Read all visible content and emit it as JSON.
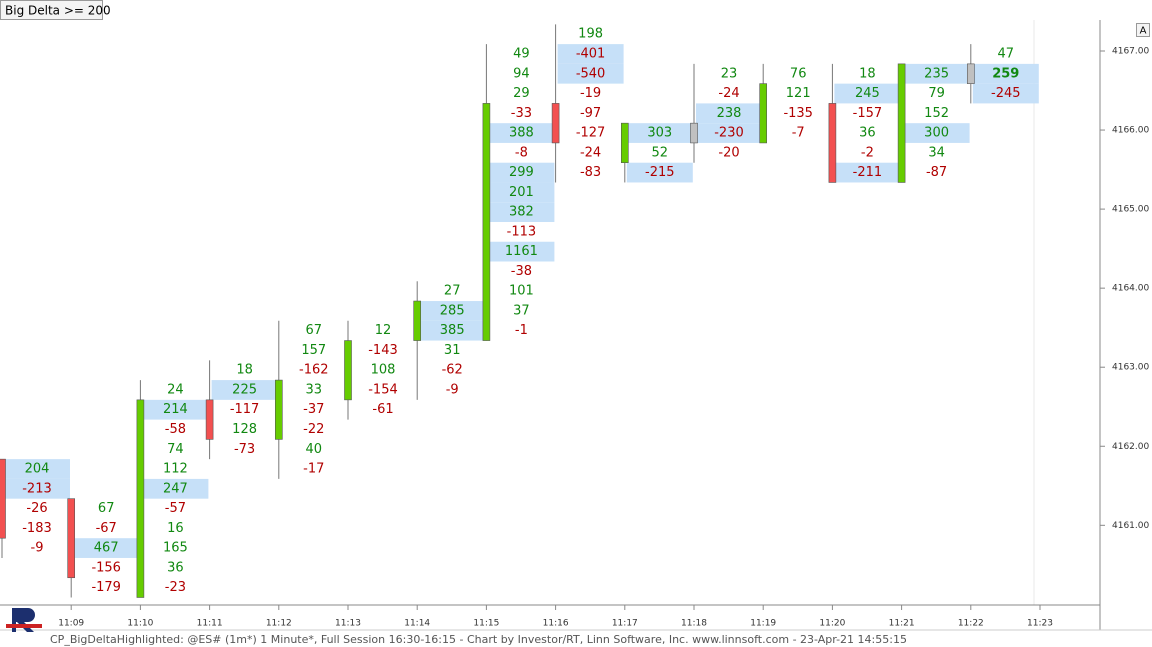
{
  "chart_data": {
    "type": "footprint",
    "title": "Big Delta >= 200",
    "highlight_threshold": 200,
    "tick_size": 0.25,
    "footer": "CP_BigDeltaHighlighted: @ES# (1m*) 1 Minute*, Full Session 16:30-16:15 - Chart by Investor/RT, Linn Software, Inc. www.linnsoft.com - 23-Apr-21 14:55:15",
    "corner_button": "A",
    "ylim": [
      4160.03,
      4167.43
    ],
    "yticks": [
      {
        "value": 4161,
        "label": "4161.00"
      },
      {
        "value": 4162,
        "label": "4162.00"
      },
      {
        "value": 4163,
        "label": "4163.00"
      },
      {
        "value": 4164,
        "label": "4164.00"
      },
      {
        "value": 4165,
        "label": "4165.00"
      },
      {
        "value": 4166,
        "label": "4166.00"
      },
      {
        "value": 4167,
        "label": "4167.00"
      }
    ],
    "x_labels": [
      "11:09",
      "11:10",
      "11:11",
      "11:12",
      "11:13",
      "11:14",
      "11:15",
      "11:16",
      "11:17",
      "11:18",
      "11:19",
      "11:20",
      "11:21",
      "11:22",
      "11:23"
    ],
    "colors": {
      "up": "#66cc00",
      "down": "#f25050",
      "flat": "#c0c0c0",
      "positive": "#118811",
      "negative": "#b00000",
      "highlight": "#c6e0f8"
    },
    "bars": [
      {
        "open": 4161.75,
        "high": 4161.75,
        "low": 4160.75,
        "close": 4161.0,
        "deltas": [
          204,
          -213,
          -26,
          -183,
          -9
        ]
      },
      {
        "open": 4161.25,
        "high": 4161.25,
        "low": 4160.25,
        "close": 4160.5,
        "deltas": [
          67,
          -67,
          467,
          -156,
          -179
        ]
      },
      {
        "open": 4160.25,
        "high": 4162.75,
        "low": 4160.25,
        "close": 4162.5,
        "deltas": [
          24,
          214,
          -58,
          74,
          112,
          247,
          -57,
          16,
          165,
          36,
          -23
        ]
      },
      {
        "open": 4162.5,
        "high": 4163.0,
        "low": 4162.0,
        "close": 4162.25,
        "deltas": [
          18,
          225,
          -117,
          128,
          -73
        ]
      },
      {
        "open": 4162.25,
        "high": 4163.5,
        "low": 4161.75,
        "close": 4162.75,
        "deltas": [
          67,
          157,
          -162,
          33,
          -37,
          -22,
          40,
          -17
        ]
      },
      {
        "open": 4162.75,
        "high": 4163.5,
        "low": 4162.5,
        "close": 4163.25,
        "deltas": [
          12,
          -143,
          108,
          -154,
          -61
        ]
      },
      {
        "open": 4163.5,
        "high": 4164.0,
        "low": 4162.75,
        "close": 4163.75,
        "deltas": [
          27,
          285,
          385,
          31,
          -62,
          -9
        ]
      },
      {
        "open": 4163.5,
        "high": 4167.0,
        "low": 4163.5,
        "close": 4166.25,
        "deltas": [
          49,
          94,
          29,
          -33,
          388,
          -8,
          299,
          201,
          382,
          -113,
          1161,
          -38,
          101,
          37,
          -1
        ]
      },
      {
        "open": 4166.25,
        "high": 4167.25,
        "low": 4165.5,
        "close": 4166.0,
        "deltas": [
          198,
          -401,
          -540,
          -19,
          -97,
          -127,
          -24,
          -83
        ]
      },
      {
        "open": 4165.75,
        "high": 4166.0,
        "low": 4165.5,
        "close": 4166.0,
        "deltas": [
          303,
          52,
          -215
        ]
      },
      {
        "open": 4166.0,
        "high": 4166.75,
        "low": 4165.75,
        "close": 4166.0,
        "deltas": [
          23,
          -24,
          238,
          -230,
          -20
        ]
      },
      {
        "open": 4166.0,
        "high": 4166.75,
        "low": 4166.0,
        "close": 4166.5,
        "deltas": [
          76,
          121,
          -135,
          -7
        ]
      },
      {
        "open": 4166.25,
        "high": 4166.75,
        "low": 4165.5,
        "close": 4165.5,
        "deltas": [
          18,
          245,
          -157,
          36,
          -2,
          -211
        ]
      },
      {
        "open": 4165.5,
        "high": 4166.75,
        "low": 4165.5,
        "close": 4166.75,
        "deltas": [
          235,
          79,
          152,
          300,
          34,
          -87
        ]
      },
      {
        "open": 4166.75,
        "high": 4167.0,
        "low": 4166.5,
        "close": 4166.75,
        "deltas": [
          47,
          259,
          -245
        ]
      }
    ]
  }
}
